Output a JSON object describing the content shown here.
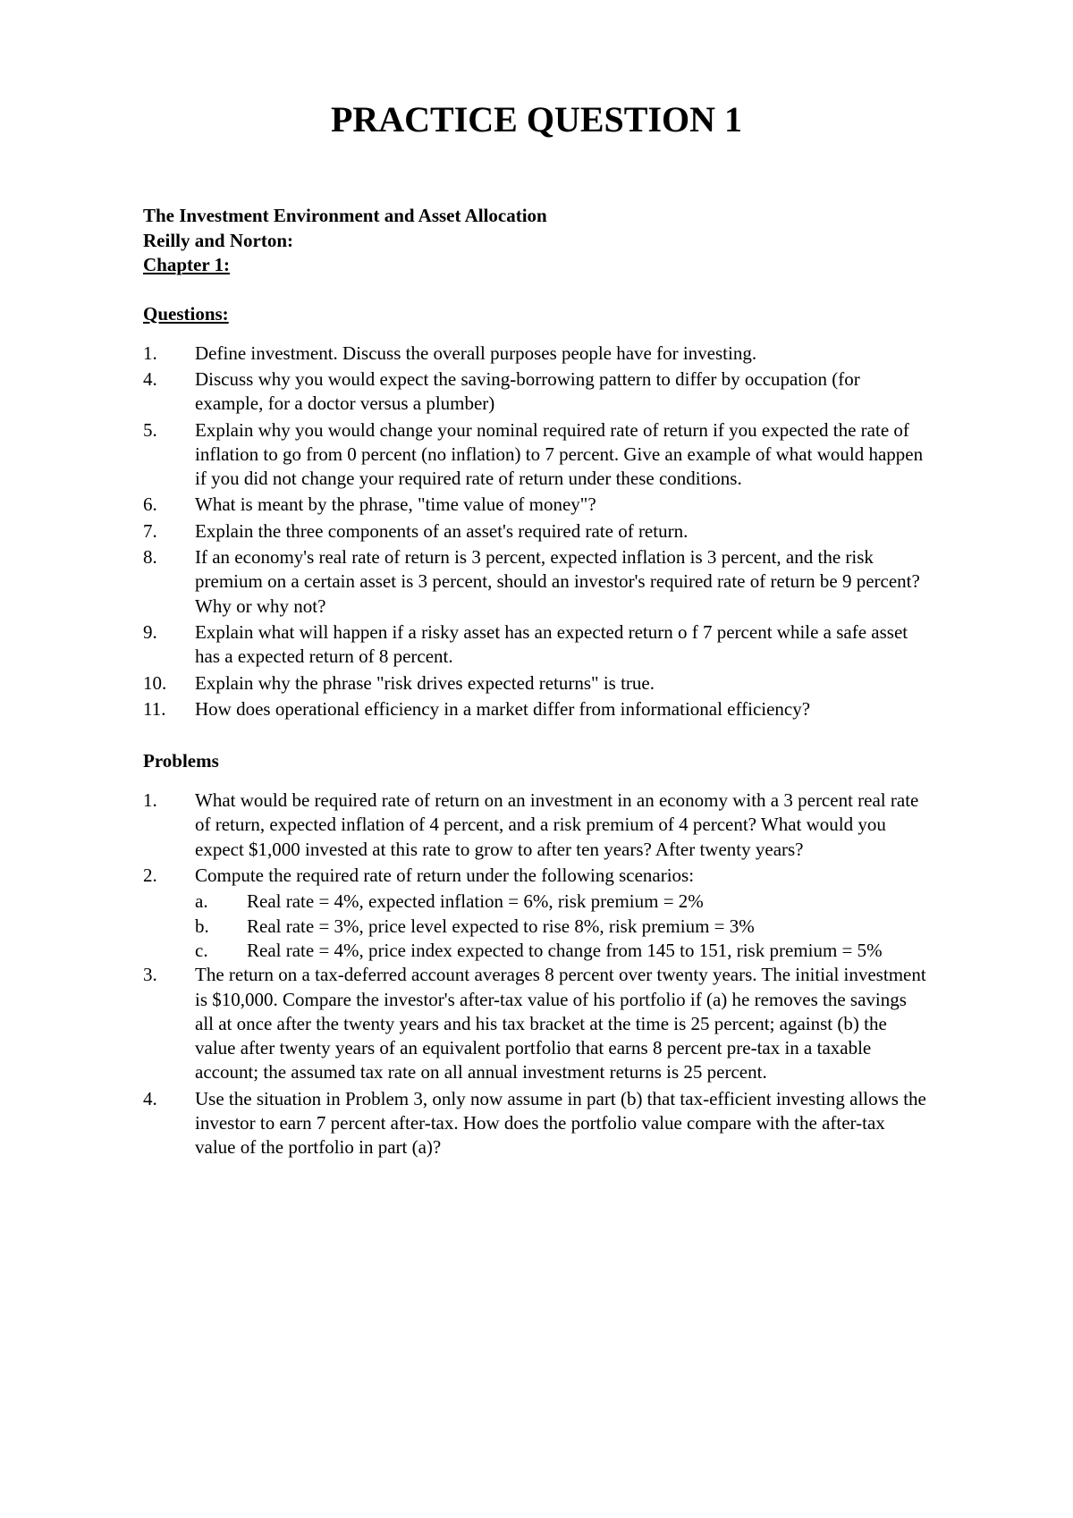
{
  "title": "PRACTICE QUESTION 1",
  "subtitle1": "The Investment Environment and Asset Allocation",
  "subtitle2": "Reilly and Norton:",
  "chapter": "Chapter 1:",
  "questionsHeader": "Questions:",
  "questions": [
    {
      "num": "1.",
      "text": "Define investment.  Discuss the overall purposes people have for investing."
    },
    {
      "num": "4.",
      "text": "Discuss why you would expect the saving-borrowing pattern to differ by occupation (for example, for a doctor versus a plumber)"
    },
    {
      "num": "5.",
      "text": "Explain why you would change your nominal required rate of return if you expected the rate of inflation to go from 0 percent (no inflation) to 7 percent.  Give an example of what would happen if you did not change your required rate of return under these conditions."
    },
    {
      "num": "6.",
      "text": "What is meant by the phrase, \"time value of money\"?"
    },
    {
      "num": "7.",
      "text": "Explain the three components of an asset's required rate of return."
    },
    {
      "num": "8.",
      "text": "If an economy's real rate of return is 3 percent, expected inflation is 3 percent, and the risk premium on a certain asset is 3 percent, should an investor's required rate of return be 9 percent?  Why or why not?"
    },
    {
      "num": "9.",
      "text": "Explain what will happen if a risky asset has an expected return o f 7 percent while a safe asset has a expected return of 8 percent."
    },
    {
      "num": "10.",
      "text": "Explain why the phrase \"risk drives expected returns\" is true."
    },
    {
      "num": "11.",
      "text": "How does operational efficiency in a market differ from informational efficiency?"
    }
  ],
  "problemsHeader": "Problems",
  "problems": [
    {
      "num": "1.",
      "text": "What would be required rate of return on an investment in an economy with a 3 percent real rate of return, expected inflation of 4 percent, and a risk premium of 4 percent? What would you expect $1,000 invested at this rate to grow to after ten years?  After twenty years?"
    },
    {
      "num": "2.",
      "text": "Compute the required rate of return under the following scenarios:",
      "subitems": [
        {
          "label": "a.",
          "text": "Real rate = 4%, expected inflation = 6%, risk premium = 2%"
        },
        {
          "label": "b.",
          "text": "Real rate = 3%, price level expected to rise 8%, risk premium = 3%"
        },
        {
          "label": "c.",
          "text": "Real rate = 4%, price index expected to change from 145 to 151, risk premium = 5%"
        }
      ]
    },
    {
      "num": "3.",
      "text": "The return on a tax-deferred account averages 8 percent over twenty years.  The initial investment is $10,000.  Compare the investor's after-tax value of his portfolio if (a) he removes the savings all at once after the twenty years and his tax bracket at the time is 25 percent; against (b) the value after twenty years of an equivalent portfolio that earns 8 percent pre-tax in a taxable account; the assumed tax rate on all annual investment returns is 25 percent."
    },
    {
      "num": "4.",
      "text": "Use the situation in Problem 3, only now assume in part (b) that tax-efficient investing allows the investor to earn 7 percent after-tax.  How does the portfolio value compare with the after-tax value of the portfolio in part (a)?"
    }
  ]
}
